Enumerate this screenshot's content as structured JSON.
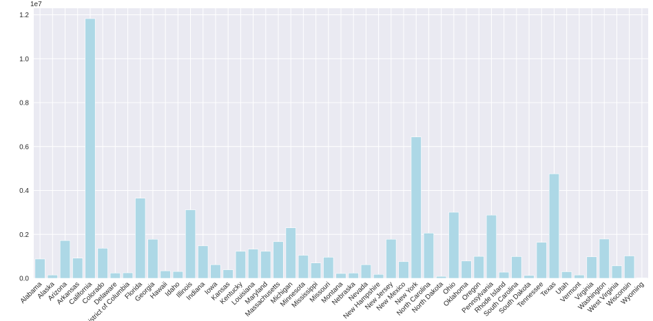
{
  "chart_data": {
    "type": "bar",
    "categories": [
      "Alabama",
      "Alaska",
      "Arizona",
      "Arkansas",
      "California",
      "Colorado",
      "Delaware",
      "District of Columbia",
      "Florida",
      "Georgia",
      "Hawaii",
      "Idaho",
      "Illinois",
      "Indiana",
      "Iowa",
      "Kansas",
      "Kentucky",
      "Louisiana",
      "Maryland",
      "Massachusetts",
      "Michigan",
      "Minnesota",
      "Mississippi",
      "Missouri",
      "Montana",
      "Nebraska",
      "Nevada",
      "New Hampshire",
      "New Jersey",
      "New Mexico",
      "New York",
      "North Carolina",
      "North Dakota",
      "Ohio",
      "Oklahoma",
      "Oregon",
      "Pennsylvania",
      "Rhode Island",
      "South Carolina",
      "South Dakota",
      "Tennessee",
      "Texas",
      "Utah",
      "Vermont",
      "Virginia",
      "Washington",
      "West Virginia",
      "Wisconsin",
      "Wyoming"
    ],
    "values": [
      880000,
      150000,
      1720000,
      920000,
      11830000,
      1370000,
      240000,
      250000,
      3650000,
      1780000,
      340000,
      310000,
      3120000,
      1480000,
      620000,
      390000,
      1230000,
      1330000,
      1230000,
      1670000,
      2300000,
      1050000,
      700000,
      960000,
      220000,
      240000,
      620000,
      180000,
      1780000,
      760000,
      6440000,
      2060000,
      90000,
      3010000,
      790000,
      1000000,
      2880000,
      280000,
      990000,
      130000,
      1640000,
      4760000,
      300000,
      150000,
      980000,
      1790000,
      570000,
      1020000,
      20000
    ],
    "ylim": [
      0,
      12300000
    ],
    "yticks": [
      0,
      2000000,
      4000000,
      6000000,
      8000000,
      10000000,
      12000000
    ],
    "ytick_labels": [
      "0.0",
      "0.2",
      "0.4",
      "0.6",
      "0.8",
      "1.0",
      "1.2"
    ],
    "y_offset_label": "1e7",
    "grid": true,
    "bar_color": "#add8e6",
    "background_color": "#eaeaf2"
  }
}
